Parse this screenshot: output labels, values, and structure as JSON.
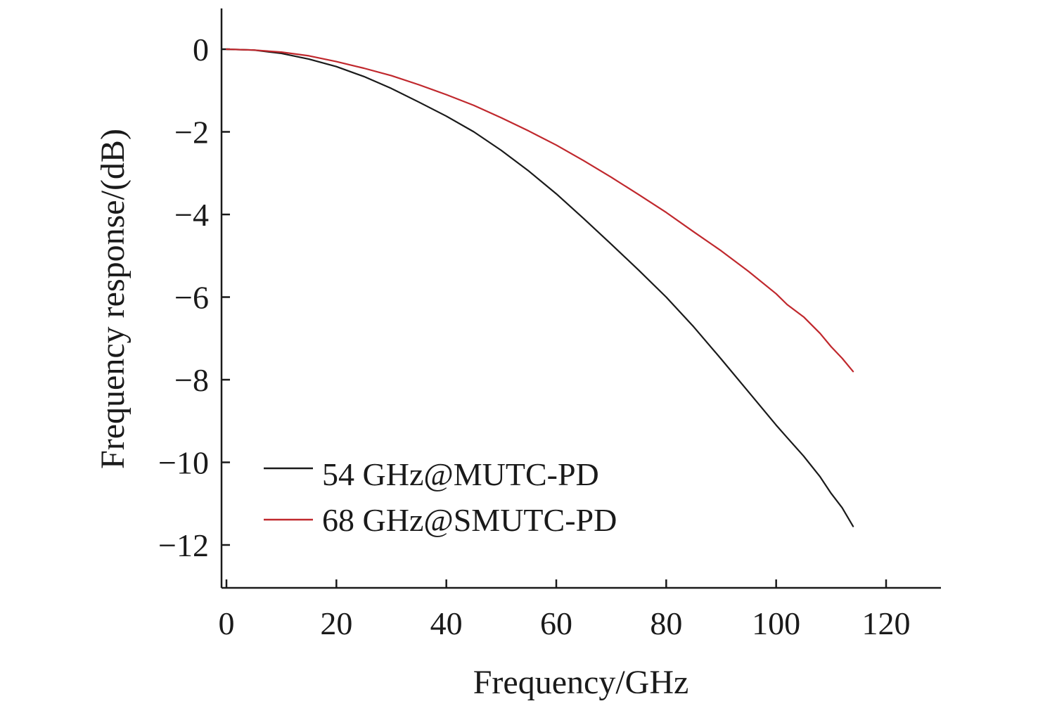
{
  "chart_data": {
    "type": "line",
    "title": "",
    "xlabel": "Frequency/GHz",
    "ylabel": "Frequency response/(dB)",
    "xlim": [
      -1,
      130
    ],
    "ylim": [
      -13,
      1
    ],
    "x_ticks": [
      0,
      20,
      40,
      60,
      80,
      100,
      120
    ],
    "y_ticks": [
      0,
      -2,
      -4,
      -6,
      -8,
      -10,
      -12
    ],
    "y_tick_labels": [
      "0",
      "−2",
      "−4",
      "−6",
      "−8",
      "−10",
      "−12"
    ],
    "grid": false,
    "legend_position": "bottom-left",
    "series": [
      {
        "name": "54 GHz@MUTC-PD",
        "color": "#1a1a1a",
        "x": [
          0,
          5,
          10,
          15,
          20,
          25,
          30,
          35,
          40,
          45,
          50,
          55,
          60,
          65,
          70,
          75,
          80,
          85,
          90,
          95,
          100,
          102,
          105,
          108,
          110,
          112,
          114
        ],
        "y": [
          0,
          -0.02,
          -0.1,
          -0.24,
          -0.42,
          -0.66,
          -0.95,
          -1.28,
          -1.62,
          -2.0,
          -2.45,
          -2.95,
          -3.5,
          -4.1,
          -4.72,
          -5.35,
          -6.0,
          -6.72,
          -7.5,
          -8.3,
          -9.1,
          -9.4,
          -9.85,
          -10.35,
          -10.75,
          -11.1,
          -11.55
        ]
      },
      {
        "name": "68 GHz@SMUTC-PD",
        "color": "#c0282d",
        "x": [
          0,
          5,
          10,
          15,
          20,
          25,
          30,
          35,
          40,
          45,
          50,
          55,
          60,
          65,
          70,
          75,
          80,
          85,
          90,
          95,
          100,
          102,
          105,
          108,
          110,
          112,
          114
        ],
        "y": [
          0,
          -0.02,
          -0.07,
          -0.16,
          -0.3,
          -0.46,
          -0.64,
          -0.86,
          -1.1,
          -1.36,
          -1.66,
          -1.98,
          -2.32,
          -2.7,
          -3.1,
          -3.52,
          -3.95,
          -4.42,
          -4.88,
          -5.38,
          -5.92,
          -6.18,
          -6.48,
          -6.88,
          -7.2,
          -7.48,
          -7.8
        ]
      }
    ]
  }
}
